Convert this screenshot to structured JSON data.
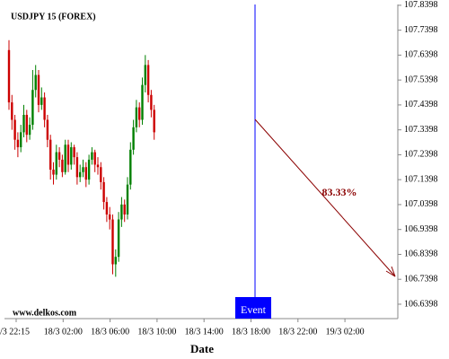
{
  "chart_data": {
    "type": "candlestick",
    "title": "USDJPY 15 (FOREX)",
    "x_label": "Date",
    "watermark": "www.delkos.com",
    "event_label": "Event",
    "annotation": "83.33%",
    "categories": [
      "/3 22:15",
      "18/3 02:00",
      "18/3 06:00",
      "18/3 10:00",
      "18/3 14:00",
      "18/3 18:00",
      "18/3 22:00",
      "19/3 02:00"
    ],
    "up_color": "#008000",
    "down_color": "#cc0000",
    "event_color": "#0000ff",
    "arrow_color": "#8b0000",
    "ylim": [
      106.582,
      107.843
    ],
    "yticks": [
      106.6398,
      106.7398,
      106.8398,
      106.9398,
      107.0398,
      107.1398,
      107.2398,
      107.3398,
      107.4398,
      107.5398,
      107.6398,
      107.7398,
      107.8398
    ],
    "open": [
      107.66,
      107.45,
      107.38,
      107.3,
      107.27,
      107.33,
      107.4,
      107.32,
      107.36,
      107.5,
      107.56,
      107.44,
      107.47,
      107.38,
      107.3,
      107.18,
      107.16,
      107.25,
      107.22,
      107.17,
      107.28,
      107.2,
      107.27,
      107.23,
      107.15,
      107.17,
      107.19,
      107.14,
      107.22,
      107.25,
      107.2,
      107.19,
      107.13,
      107.05,
      107.0,
      106.98,
      106.8,
      106.83,
      106.98,
      107.04,
      107.0,
      107.12,
      107.26,
      107.35,
      107.43,
      107.38,
      107.52,
      107.6,
      107.48,
      107.42
    ],
    "high": [
      107.7,
      107.48,
      107.4,
      107.33,
      107.36,
      107.44,
      107.42,
      107.39,
      107.58,
      107.6,
      107.58,
      107.51,
      107.49,
      107.4,
      107.32,
      107.21,
      107.28,
      107.27,
      107.24,
      107.3,
      107.3,
      107.29,
      107.28,
      107.25,
      107.2,
      107.22,
      107.21,
      107.24,
      107.27,
      107.26,
      107.23,
      107.21,
      107.15,
      107.07,
      107.03,
      107.0,
      106.86,
      107.01,
      107.07,
      107.06,
      107.15,
      107.29,
      107.38,
      107.46,
      107.45,
      107.55,
      107.64,
      107.62,
      107.5,
      107.44
    ],
    "low": [
      107.42,
      107.34,
      107.26,
      107.23,
      107.25,
      107.31,
      107.29,
      107.3,
      107.34,
      107.47,
      107.41,
      107.42,
      107.35,
      107.27,
      107.14,
      107.12,
      107.14,
      107.19,
      107.15,
      107.16,
      107.17,
      107.18,
      107.2,
      107.12,
      107.13,
      107.15,
      107.11,
      107.12,
      107.2,
      107.17,
      107.16,
      107.1,
      107.02,
      106.97,
      106.94,
      106.76,
      106.75,
      106.81,
      106.95,
      106.97,
      106.98,
      107.1,
      107.24,
      107.33,
      107.35,
      107.36,
      107.49,
      107.45,
      107.39,
      107.3
    ],
    "close": [
      107.45,
      107.38,
      107.3,
      107.27,
      107.33,
      107.4,
      107.32,
      107.36,
      107.5,
      107.56,
      107.44,
      107.47,
      107.38,
      107.3,
      107.18,
      107.16,
      107.25,
      107.22,
      107.17,
      107.28,
      107.2,
      107.27,
      107.23,
      107.15,
      107.17,
      107.19,
      107.14,
      107.22,
      107.25,
      107.2,
      107.19,
      107.13,
      107.05,
      107.0,
      106.98,
      106.8,
      106.83,
      106.98,
      107.04,
      107.0,
      107.12,
      107.26,
      107.35,
      107.43,
      107.38,
      107.52,
      107.6,
      107.48,
      107.42,
      107.33
    ]
  }
}
